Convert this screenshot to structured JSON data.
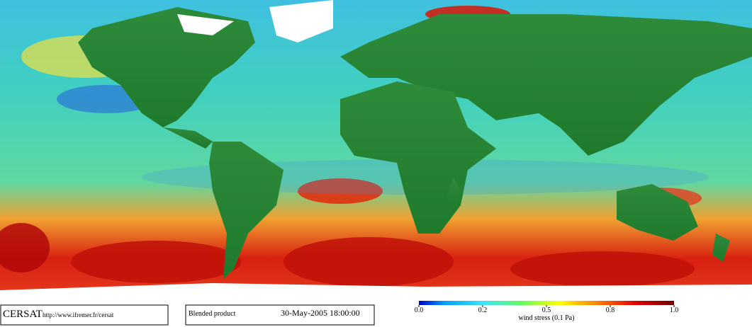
{
  "footer": {
    "brand": "CERSAT",
    "url": "http://www.ifremer.fr/cersat",
    "product": "Blended product",
    "date": "30-May-2005 18:00:00"
  },
  "colorbar": {
    "label": "wind stress (0.1 Pa)",
    "ticks": [
      {
        "value": 0,
        "label": "0.0"
      },
      {
        "value": 0.2,
        "label": "0.2"
      },
      {
        "value": 0.5,
        "label": "0.5"
      },
      {
        "value": 0.8,
        "label": "0.8"
      },
      {
        "value": 1,
        "label": "1.0"
      }
    ]
  }
}
